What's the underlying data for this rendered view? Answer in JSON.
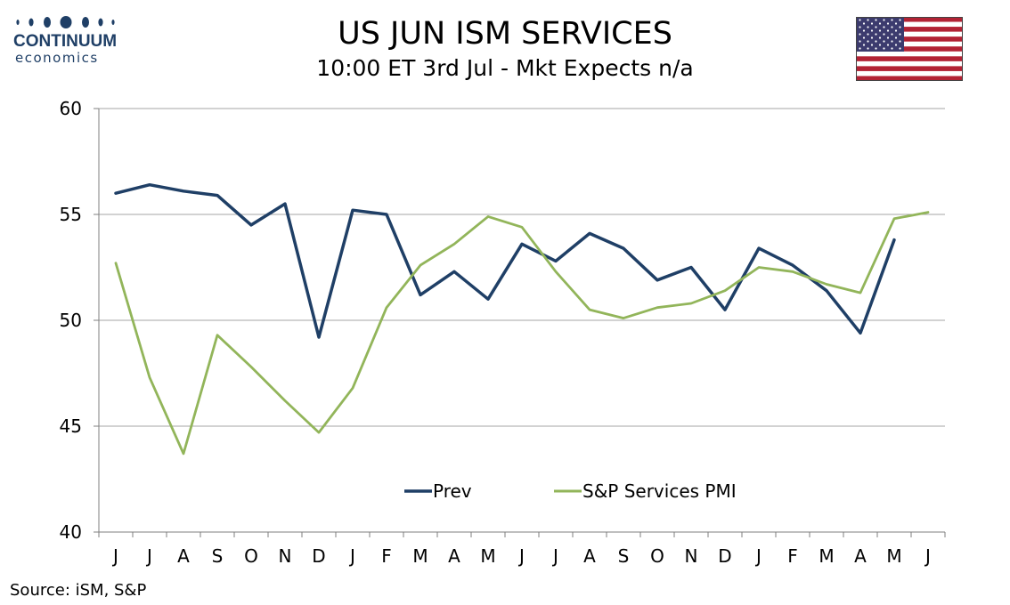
{
  "header": {
    "title": "US JUN ISM SERVICES",
    "subtitle": "10:00 ET 3rd Jul - Mkt Expects n/a"
  },
  "logo": {
    "name": "CONTINUUM",
    "sub": "economics",
    "color": "#1f3f66"
  },
  "flag": {
    "icon": "us-flag-icon"
  },
  "source": "Source: iSM, S&P",
  "colors": {
    "prev": "#1f3f66",
    "sp": "#92b55a",
    "grid": "#a6a6a6",
    "axis": "#7f7f7f"
  },
  "chart_data": {
    "type": "line",
    "title": "US JUN ISM SERVICES",
    "subtitle": "10:00 ET 3rd Jul - Mkt Expects n/a",
    "categories": [
      "J",
      "J",
      "A",
      "S",
      "O",
      "N",
      "D",
      "J",
      "F",
      "M",
      "A",
      "M",
      "J",
      "J",
      "A",
      "S",
      "O",
      "N",
      "D",
      "J",
      "F",
      "M",
      "A",
      "M",
      "J"
    ],
    "ylim": [
      40,
      60
    ],
    "yticks": [
      40,
      45,
      50,
      55,
      60
    ],
    "grid": true,
    "legend_position": "bottom-center",
    "series": [
      {
        "name": "Prev",
        "color": "#1f3f66",
        "values": [
          56.0,
          56.4,
          56.1,
          55.9,
          54.5,
          55.5,
          49.2,
          55.2,
          55.0,
          51.2,
          52.3,
          51.0,
          53.6,
          52.8,
          54.1,
          53.4,
          51.9,
          52.5,
          50.5,
          53.4,
          52.6,
          51.4,
          49.4,
          53.8,
          null
        ]
      },
      {
        "name": "S&P Services PMI",
        "color": "#92b55a",
        "values": [
          52.7,
          47.3,
          43.7,
          49.3,
          47.8,
          46.2,
          44.7,
          46.8,
          50.6,
          52.6,
          53.6,
          54.9,
          54.4,
          52.3,
          50.5,
          50.1,
          50.6,
          50.8,
          51.4,
          52.5,
          52.3,
          51.7,
          51.3,
          54.8,
          55.1
        ]
      }
    ]
  }
}
